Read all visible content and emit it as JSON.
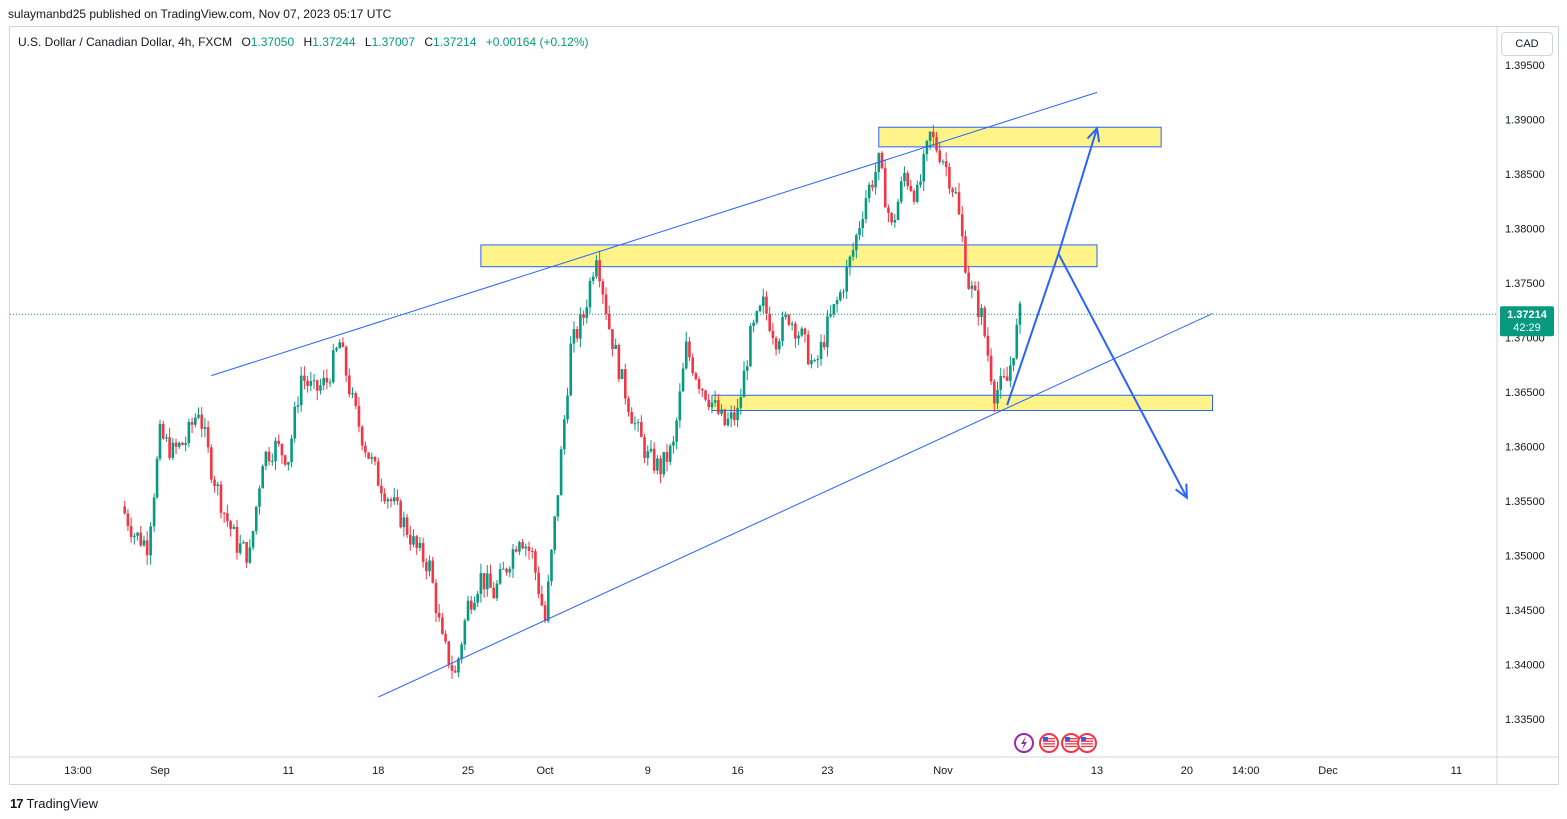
{
  "header": {
    "published": "sulaymanbd25 published on TradingView.com, Nov 07, 2023 05:17 UTC"
  },
  "legend": {
    "symbol": "U.S. Dollar / Canadian Dollar, 4h, FXCM",
    "o_label": "O",
    "o_value": "1.37050",
    "h_label": "H",
    "h_value": "1.37244",
    "l_label": "L",
    "l_value": "1.37007",
    "c_label": "C",
    "c_value": "1.37214",
    "change": "+0.00164 (+0.12%)"
  },
  "currency_button": "CAD",
  "price_tag": {
    "price": "1.37214",
    "countdown": "42:29"
  },
  "footer": {
    "logo": "17",
    "brand": "TradingView"
  },
  "colors": {
    "up": "#089981",
    "down": "#f23645",
    "trendline": "#2962ff",
    "zone_fill": "#fff176",
    "zone_border": "#2962ff"
  },
  "icons": [
    "lightning-event-icon",
    "us-flag-event-icon",
    "us-flag-event-icon",
    "us-flag-event-icon"
  ],
  "chart_data": {
    "type": "candlestick",
    "interval": "4h",
    "ylim": [
      1.3315,
      1.3985
    ],
    "y_ticks": [
      "1.39500",
      "1.39000",
      "1.38500",
      "1.38000",
      "1.37500",
      "1.37000",
      "1.36500",
      "1.36000",
      "1.35500",
      "1.35000",
      "1.34500",
      "1.34000",
      "1.33500"
    ],
    "x_ticks": [
      "13:00",
      "Sep",
      "11",
      "18",
      "25",
      "Oct",
      "9",
      "16",
      "23",
      "Nov",
      "13",
      "20",
      "14:00",
      "Dec",
      "11"
    ],
    "close_path": [
      {
        "x": "Aug 29",
        "y": 1.3545
      },
      {
        "x": "Aug 30",
        "y": 1.352
      },
      {
        "x": "Aug 31",
        "y": 1.351
      },
      {
        "x": "Aug 31 13:00",
        "y": 1.356
      },
      {
        "x": "Sep 1",
        "y": 1.361
      },
      {
        "x": "Sep 2",
        "y": 1.3595
      },
      {
        "x": "Sep 3",
        "y": 1.3605
      },
      {
        "x": "Sep 4",
        "y": 1.3635
      },
      {
        "x": "Sep 5",
        "y": 1.358
      },
      {
        "x": "Sep 6",
        "y": 1.354
      },
      {
        "x": "Sep 7",
        "y": 1.351
      },
      {
        "x": "Sep 8",
        "y": 1.35
      },
      {
        "x": "Sep 9",
        "y": 1.359
      },
      {
        "x": "Sep 10",
        "y": 1.36
      },
      {
        "x": "Sep 11",
        "y": 1.359
      },
      {
        "x": "Sep 12",
        "y": 1.3665
      },
      {
        "x": "Sep 13",
        "y": 1.365
      },
      {
        "x": "Sep 14",
        "y": 1.366
      },
      {
        "x": "Sep 15",
        "y": 1.3695
      },
      {
        "x": "Sep 16",
        "y": 1.364
      },
      {
        "x": "Sep 17",
        "y": 1.36
      },
      {
        "x": "Sep 18",
        "y": 1.357
      },
      {
        "x": "Sep 19",
        "y": 1.355
      },
      {
        "x": "Sep 20",
        "y": 1.353
      },
      {
        "x": "Sep 21",
        "y": 1.3505
      },
      {
        "x": "Sep 22",
        "y": 1.349
      },
      {
        "x": "Sep 23",
        "y": 1.342
      },
      {
        "x": "Sep 24",
        "y": 1.339
      },
      {
        "x": "Sep 25",
        "y": 1.3455
      },
      {
        "x": "Sep 26",
        "y": 1.348
      },
      {
        "x": "Sep 27",
        "y": 1.3465
      },
      {
        "x": "Sep 28",
        "y": 1.349
      },
      {
        "x": "Sep 29",
        "y": 1.352
      },
      {
        "x": "Sep 30",
        "y": 1.35
      },
      {
        "x": "Oct 1",
        "y": 1.344
      },
      {
        "x": "Oct 2",
        "y": 1.356
      },
      {
        "x": "Oct 3",
        "y": 1.369
      },
      {
        "x": "Oct 4",
        "y": 1.372
      },
      {
        "x": "Oct 5",
        "y": 1.378
      },
      {
        "x": "Oct 6",
        "y": 1.371
      },
      {
        "x": "Oct 7",
        "y": 1.366
      },
      {
        "x": "Oct 8",
        "y": 1.362
      },
      {
        "x": "Oct 9",
        "y": 1.359
      },
      {
        "x": "Oct 10",
        "y": 1.358
      },
      {
        "x": "Oct 11",
        "y": 1.36
      },
      {
        "x": "Oct 12",
        "y": 1.369
      },
      {
        "x": "Oct 13",
        "y": 1.366
      },
      {
        "x": "Oct 14",
        "y": 1.364
      },
      {
        "x": "Oct 15",
        "y": 1.362
      },
      {
        "x": "Oct 16",
        "y": 1.363
      },
      {
        "x": "Oct 17",
        "y": 1.37
      },
      {
        "x": "Oct 18",
        "y": 1.373
      },
      {
        "x": "Oct 19",
        "y": 1.37
      },
      {
        "x": "Oct 20",
        "y": 1.372
      },
      {
        "x": "Oct 21",
        "y": 1.37
      },
      {
        "x": "Oct 22",
        "y": 1.367
      },
      {
        "x": "Oct 23",
        "y": 1.371
      },
      {
        "x": "Oct 24",
        "y": 1.374
      },
      {
        "x": "Oct 25",
        "y": 1.378
      },
      {
        "x": "Oct 26",
        "y": 1.383
      },
      {
        "x": "Oct 27",
        "y": 1.386
      },
      {
        "x": "Oct 28",
        "y": 1.38
      },
      {
        "x": "Oct 29",
        "y": 1.385
      },
      {
        "x": "Oct 30",
        "y": 1.383
      },
      {
        "x": "Oct 31",
        "y": 1.3885
      },
      {
        "x": "Nov 1",
        "y": 1.3865
      },
      {
        "x": "Nov 2",
        "y": 1.383
      },
      {
        "x": "Nov 3",
        "y": 1.375
      },
      {
        "x": "Nov 4",
        "y": 1.372
      },
      {
        "x": "Nov 5",
        "y": 1.365
      },
      {
        "x": "Nov 6",
        "y": 1.366
      },
      {
        "x": "Nov 7",
        "y": 1.3721
      }
    ],
    "last_price": 1.37214,
    "drawings": {
      "upper_trendline": [
        {
          "x": "Sep 5",
          "y": 1.3665
        },
        {
          "x": "Nov 13",
          "y": 1.3925
        }
      ],
      "lower_trendline": [
        {
          "x": "Sep 18",
          "y": 1.337
        },
        {
          "x": "Nov 22",
          "y": 1.3722
        }
      ],
      "zones": [
        {
          "from": "Oct 27",
          "to": "Nov 18",
          "top": 1.3893,
          "bottom": 1.3875
        },
        {
          "from": "Sep 26",
          "to": "Nov 13",
          "top": 1.3785,
          "bottom": 1.3765
        },
        {
          "from": "Oct 14",
          "to": "Nov 22",
          "top": 1.3647,
          "bottom": 1.3633
        }
      ],
      "projection_arrows": [
        [
          {
            "x": "Nov 6",
            "y": 1.3638
          },
          {
            "x": "Nov 10",
            "y": 1.3777
          },
          {
            "x": "Nov 13",
            "y": 1.3892
          }
        ],
        [
          {
            "x": "Nov 10",
            "y": 1.3777
          },
          {
            "x": "Nov 20",
            "y": 1.3553
          }
        ]
      ]
    }
  }
}
